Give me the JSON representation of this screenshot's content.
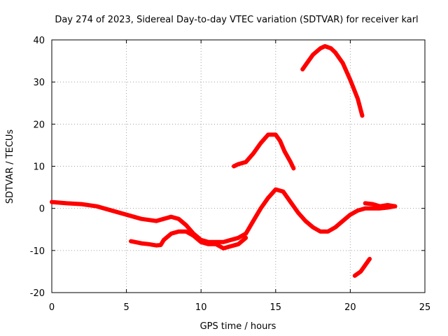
{
  "chart_data": {
    "type": "line",
    "title": "Day 274 of 2023, Sidereal Day-to-day VTEC variation (SDTVAR) for receiver karl",
    "xlabel": "GPS time / hours",
    "ylabel": "SDTVAR / TECUs",
    "xlim": [
      0,
      25
    ],
    "ylim": [
      -20,
      40
    ],
    "xticks": [
      "0",
      "5",
      "10",
      "15",
      "20",
      "25"
    ],
    "yticks": [
      "-20",
      "-10",
      "0",
      "10",
      "20",
      "30",
      "40"
    ],
    "grid": true,
    "series_color": "#ff0000",
    "series": [
      {
        "name": "track-main",
        "x": [
          0,
          1,
          2,
          3,
          4,
          5,
          6,
          7,
          7.5,
          8,
          8.5,
          9,
          9.5,
          10,
          10.5,
          11,
          11.5,
          12,
          12.5,
          13,
          13.5,
          14,
          14.5,
          15,
          15.5,
          16,
          16.5,
          17,
          17.5,
          18,
          18.5,
          19,
          19.5,
          20,
          20.5,
          21,
          21.5,
          22,
          22.5,
          23
        ],
        "y": [
          1.5,
          1.2,
          1,
          0.5,
          -0.5,
          -1.5,
          -2.5,
          -3,
          -2.5,
          -2,
          -2.5,
          -4,
          -6,
          -7.5,
          -8,
          -8,
          -8,
          -7.5,
          -7,
          -6,
          -3,
          0,
          2.5,
          4.5,
          4,
          1.5,
          -1,
          -3,
          -4.5,
          -5.5,
          -5.5,
          -4.5,
          -3,
          -1.5,
          -0.5,
          0,
          0,
          0,
          0.2,
          0.5
        ]
      },
      {
        "name": "track-lower",
        "x": [
          5.3,
          6,
          6.5,
          7,
          7.3,
          7.5,
          8,
          8.5,
          9,
          9.5,
          10,
          10.5,
          11,
          11.5,
          12,
          12.5,
          13
        ],
        "y": [
          -7.8,
          -8.3,
          -8.5,
          -8.8,
          -8.7,
          -7.5,
          -6,
          -5.5,
          -5.5,
          -6.5,
          -8,
          -8.5,
          -8.5,
          -9.5,
          -9,
          -8.5,
          -7
        ]
      },
      {
        "name": "track-right-upper",
        "x": [
          21,
          21.5,
          22,
          22.5,
          23
        ],
        "y": [
          1.2,
          1,
          0.5,
          0.8,
          0.5
        ]
      },
      {
        "name": "track-arc-mid",
        "x": [
          12.2,
          12.5,
          13,
          13.5,
          14,
          14.5,
          15,
          15.3,
          15.6,
          16,
          16.2
        ],
        "y": [
          10,
          10.5,
          11,
          13,
          15.5,
          17.5,
          17.5,
          16,
          13.5,
          11,
          9.5
        ]
      },
      {
        "name": "track-arc-top",
        "x": [
          16.8,
          17,
          17.5,
          18,
          18.3,
          18.7,
          19,
          19.5,
          20,
          20.5,
          20.8
        ],
        "y": [
          33,
          34,
          36.5,
          38,
          38.5,
          38,
          37,
          34.5,
          30.5,
          26,
          22
        ]
      },
      {
        "name": "track-low-segment",
        "x": [
          20.3,
          20.7,
          21,
          21.3
        ],
        "y": [
          -16,
          -15,
          -13.5,
          -12
        ]
      }
    ]
  }
}
